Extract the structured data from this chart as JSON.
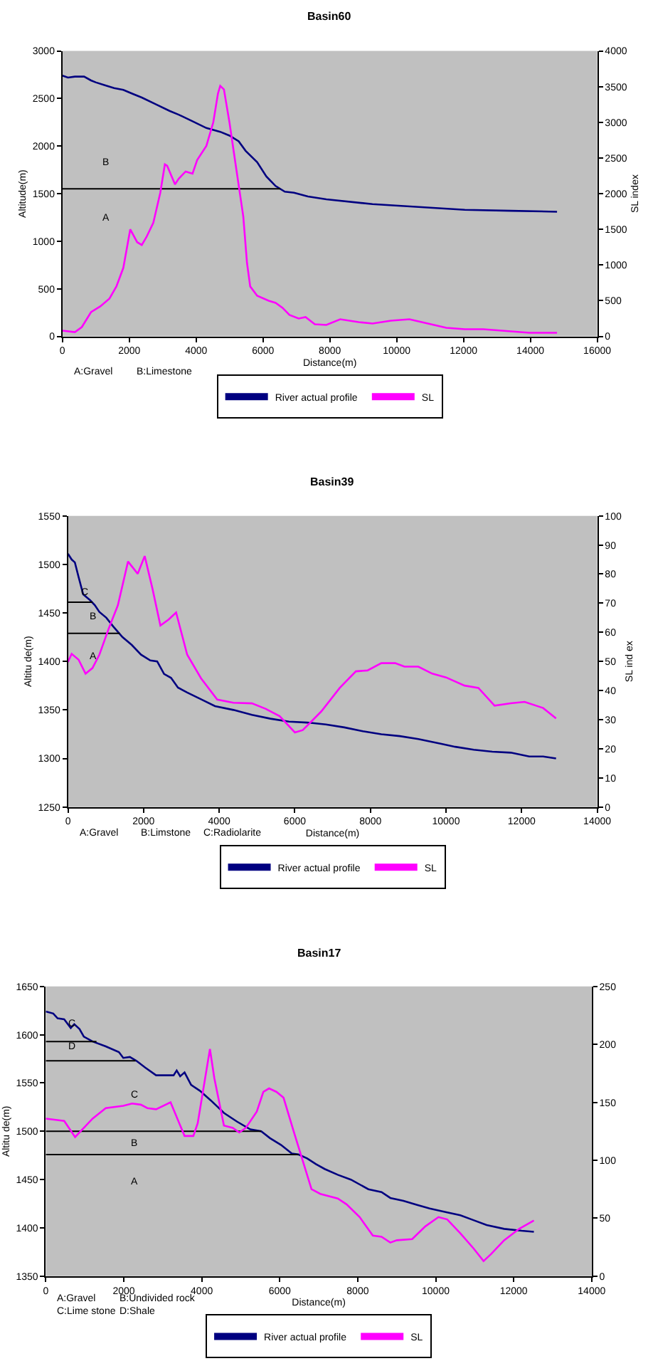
{
  "chart_data": [
    {
      "type": "line",
      "title": "Basin60",
      "xlabel": "Distance(m)",
      "ylabel": "Altitude(m)",
      "y2label": "SL index",
      "xlim": [
        0,
        16000
      ],
      "xticks": [
        0,
        2000,
        4000,
        6000,
        8000,
        10000,
        12000,
        14000,
        16000
      ],
      "ylim": [
        0,
        3000
      ],
      "yticks": [
        0,
        500,
        1000,
        1500,
        2000,
        2500,
        3000
      ],
      "y2lim": [
        0,
        4000
      ],
      "y2ticks": [
        0,
        500,
        1000,
        1500,
        2000,
        2500,
        3000,
        3500,
        4000
      ],
      "grid": false,
      "legend": "bottom",
      "series": [
        {
          "name": "River actual profile",
          "color": "#000080",
          "x": [
            0,
            166,
            373,
            649,
            856,
            994,
            1270,
            1546,
            1822,
            2098,
            2374,
            2789,
            3203,
            3479,
            3893,
            4307,
            4721,
            4997,
            5273,
            5480,
            5826,
            6102,
            6378,
            6654,
            6930,
            7344,
            7896,
            9277,
            10657,
            12037,
            13418,
            14798
          ],
          "values": [
            2740,
            2720,
            2730,
            2730,
            2690,
            2670,
            2640,
            2610,
            2590,
            2550,
            2510,
            2440,
            2370,
            2330,
            2260,
            2190,
            2150,
            2110,
            2050,
            1950,
            1830,
            1680,
            1580,
            1520,
            1510,
            1470,
            1440,
            1390,
            1360,
            1330,
            1320,
            1310
          ]
        },
        {
          "name": "SL",
          "color": "#ff00ff",
          "axis": "y2",
          "x": [
            0,
            373,
            580,
            856,
            1132,
            1408,
            1615,
            1822,
            2029,
            2236,
            2374,
            2512,
            2719,
            2927,
            3065,
            3134,
            3368,
            3479,
            3686,
            3893,
            4031,
            4307,
            4514,
            4652,
            4721,
            4832,
            4997,
            5204,
            5411,
            5522,
            5618,
            5826,
            6171,
            6378,
            6585,
            6792,
            7068,
            7275,
            7551,
            7896,
            8310,
            8863,
            9277,
            9829,
            10381,
            10933,
            11485,
            12037,
            12590,
            13142,
            13970,
            14798
          ],
          "values": [
            80,
            60,
            130,
            340,
            420,
            530,
            700,
            960,
            1500,
            1320,
            1280,
            1390,
            1590,
            2010,
            2410,
            2390,
            2130,
            2210,
            2310,
            2280,
            2470,
            2670,
            3000,
            3400,
            3510,
            3460,
            3000,
            2340,
            1680,
            1030,
            700,
            570,
            500,
            470,
            400,
            300,
            250,
            270,
            170,
            160,
            240,
            200,
            180,
            220,
            240,
            180,
            120,
            100,
            100,
            80,
            50,
            50
          ]
        },
        {
          "color": "#000000",
          "x": [
            0,
            6516
          ],
          "values": [
            1550,
            1550
          ]
        }
      ],
      "annotations": [
        "B",
        "A",
        "A:Gravel",
        "B:Limestone"
      ]
    },
    {
      "type": "line",
      "title": "Basin39",
      "xlabel": "Distance(m)",
      "ylabel": "Altitu de(m)",
      "y2label": "SL ind ex",
      "xlim": [
        0,
        14000
      ],
      "xticks": [
        0,
        2000,
        4000,
        6000,
        8000,
        10000,
        12000,
        14000
      ],
      "ylim": [
        1250,
        1550
      ],
      "yticks": [
        1250,
        1300,
        1350,
        1400,
        1450,
        1500,
        1550
      ],
      "y2lim": [
        0,
        100
      ],
      "y2ticks": [
        0,
        10,
        20,
        30,
        40,
        50,
        60,
        70,
        80,
        90,
        100
      ],
      "grid": false,
      "legend": "bottom",
      "series": [
        {
          "name": "River actual profile",
          "color": "#000080",
          "x": [
            0,
            98,
            183,
            281,
            403,
            587,
            709,
            831,
            1015,
            1198,
            1443,
            1687,
            1932,
            2177,
            2360,
            2543,
            2727,
            2910,
            3154,
            3521,
            3888,
            4377,
            4866,
            5355,
            5844,
            6333,
            6822,
            7311,
            7800,
            8290,
            8779,
            9268,
            9879,
            10246,
            10735,
            11224,
            11713,
            12202,
            12569,
            12911
          ],
          "values": [
            1511,
            1505,
            1502,
            1487,
            1469,
            1463,
            1458,
            1451,
            1445,
            1436,
            1425,
            1417,
            1407,
            1401,
            1400,
            1387,
            1383,
            1373,
            1368,
            1361,
            1354,
            1350,
            1345,
            1341,
            1338,
            1337,
            1335,
            1332,
            1328,
            1325,
            1323,
            1320,
            1315,
            1312,
            1309,
            1307,
            1306,
            1302,
            1302,
            1300
          ]
        },
        {
          "name": "SL",
          "color": "#ff00ff",
          "axis": "y2",
          "x": [
            0,
            98,
            281,
            465,
            648,
            831,
            1076,
            1320,
            1589,
            1846,
            2030,
            2237,
            2445,
            2665,
            2861,
            3154,
            3521,
            3949,
            4377,
            4866,
            5233,
            5600,
            6003,
            6211,
            6700,
            7189,
            7617,
            7923,
            8290,
            8656,
            8901,
            9268,
            9634,
            10001,
            10490,
            10857,
            11285,
            11713,
            12080,
            12569,
            12911
          ],
          "values": [
            49.8,
            52.6,
            50.6,
            45.8,
            47.7,
            52.3,
            61.2,
            69.3,
            84.3,
            80.1,
            86.2,
            74.9,
            62.3,
            64.4,
            66.8,
            52.3,
            44.2,
            36.9,
            35.8,
            35.6,
            33.7,
            31.2,
            25.6,
            26.4,
            32.8,
            40.9,
            46.6,
            46.9,
            49.4,
            49.4,
            48.2,
            48.2,
            45.8,
            44.5,
            41.7,
            40.9,
            34.8,
            35.6,
            36.1,
            34.0,
            30.4
          ]
        },
        {
          "color": "#000000",
          "x": [
            0,
            650
          ],
          "values": [
            1461,
            1461
          ]
        },
        {
          "color": "#000000",
          "x": [
            0,
            1370
          ],
          "values": [
            1429,
            1429
          ]
        }
      ],
      "annotations": [
        "C",
        "B",
        "A",
        "A:Gravel",
        "B:Limstone",
        "C:Radiolarite"
      ]
    },
    {
      "type": "line",
      "title": "Basin17",
      "xlabel": "Distance(m)",
      "ylabel": "Altitu de(m)",
      "xlim": [
        0,
        14000
      ],
      "xticks": [
        0,
        2000,
        4000,
        6000,
        8000,
        10000,
        12000,
        14000
      ],
      "ylim": [
        1350,
        1650
      ],
      "yticks": [
        1350,
        1400,
        1450,
        1500,
        1550,
        1600,
        1650
      ],
      "y2lim": [
        0,
        250
      ],
      "y2ticks": [
        0,
        50,
        100,
        150,
        200,
        250
      ],
      "grid": false,
      "legend": "bottom",
      "series": [
        {
          "name": "River actual profile",
          "color": "#000080",
          "x": [
            0,
            191,
            303,
            472,
            640,
            730,
            864,
            976,
            1201,
            1538,
            1875,
            1987,
            2156,
            2324,
            2549,
            2829,
            3278,
            3357,
            3447,
            3559,
            3727,
            3952,
            4233,
            4569,
            4906,
            5243,
            5524,
            5748,
            6029,
            6310,
            6478,
            6703,
            6927,
            7152,
            7488,
            7825,
            8274,
            8611,
            8836,
            9173,
            9509,
            9846,
            10295,
            10632,
            10969,
            11306,
            11755,
            12204,
            12518
          ],
          "values": [
            1624,
            1622,
            1617,
            1616,
            1607,
            1611,
            1606,
            1598,
            1593,
            1588,
            1582,
            1576,
            1577,
            1573,
            1566,
            1558,
            1558,
            1563,
            1557,
            1561,
            1548,
            1542,
            1532,
            1519,
            1510,
            1502,
            1500,
            1493,
            1486,
            1477,
            1476,
            1472,
            1466,
            1461,
            1455,
            1450,
            1440,
            1437,
            1431,
            1428,
            1424,
            1420,
            1416,
            1413,
            1408,
            1403,
            1399,
            1397,
            1396
          ]
        },
        {
          "name": "SL",
          "color": "#ff00ff",
          "axis": "y2",
          "x": [
            0,
            472,
            752,
            1201,
            1538,
            1987,
            2212,
            2436,
            2605,
            2829,
            3200,
            3559,
            3784,
            3896,
            4210,
            4322,
            4569,
            4794,
            4962,
            5131,
            5411,
            5580,
            5726,
            5917,
            6097,
            6366,
            6815,
            7040,
            7488,
            7713,
            8050,
            8387,
            8611,
            8836,
            9004,
            9397,
            9734,
            10071,
            10295,
            10632,
            10969,
            11227,
            11418,
            11755,
            12148,
            12518
          ],
          "values": [
            136,
            134,
            120,
            136,
            145,
            147,
            149,
            148,
            145,
            144,
            150,
            121,
            121,
            132,
            196,
            171,
            130,
            128,
            124,
            128,
            142,
            159,
            162,
            159,
            154,
            124,
            75,
            71,
            67,
            62,
            51,
            35,
            34,
            29,
            31,
            32,
            43,
            51,
            49,
            37,
            24,
            13,
            19,
            31,
            41,
            48
          ]
        },
        {
          "color": "#000000",
          "x": [
            0,
            1300
          ],
          "values": [
            1593,
            1593
          ]
        },
        {
          "color": "#000000",
          "x": [
            0,
            2300
          ],
          "values": [
            1573,
            1573
          ]
        },
        {
          "color": "#000000",
          "x": [
            0,
            5524
          ],
          "values": [
            1500,
            1500
          ]
        },
        {
          "color": "#000000",
          "x": [
            0,
            6480
          ],
          "values": [
            1476,
            1476
          ]
        }
      ],
      "annotations": [
        "C",
        "D",
        "C",
        "B",
        "A",
        "A:Gravel",
        "B:Undivided rock",
        "C:Lime stone",
        "D:Shale"
      ]
    }
  ]
}
